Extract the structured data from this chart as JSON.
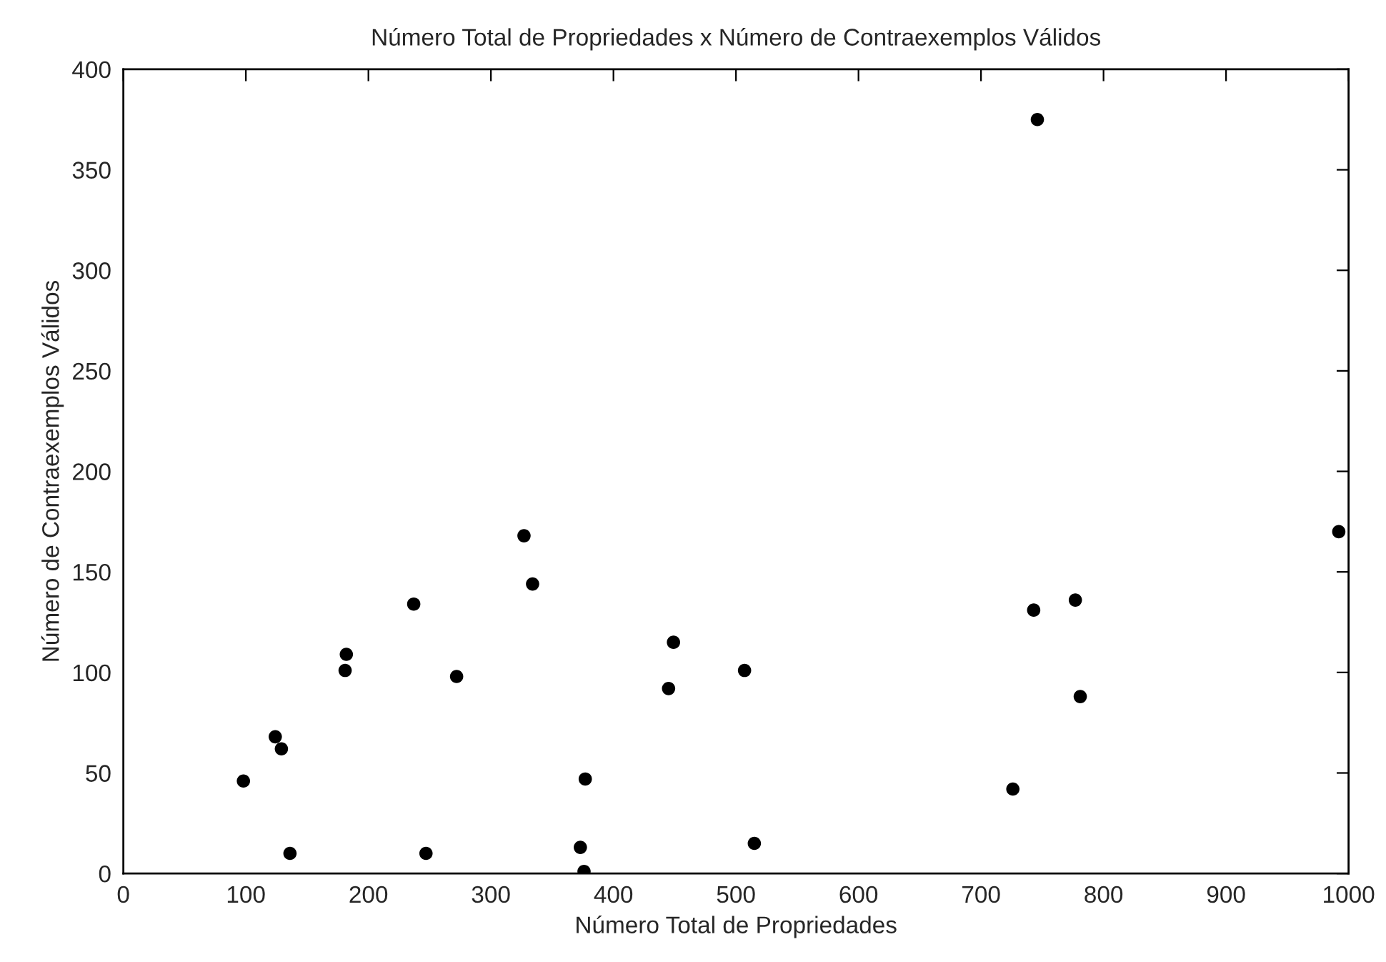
{
  "chart_data": {
    "type": "scatter",
    "title": "Número Total de Propriedades x Número de Contraexemplos Válidos",
    "xlabel": "Número Total de Propriedades",
    "ylabel": "Número de Contraexemplos Válidos",
    "x": [
      98,
      124,
      129,
      136,
      181,
      182,
      237,
      247,
      272,
      327,
      334,
      377,
      373,
      376,
      449,
      445,
      507,
      515,
      746,
      743,
      777,
      781,
      726,
      992
    ],
    "values": [
      46,
      68,
      62,
      10,
      101,
      109,
      134,
      10,
      98,
      168,
      144,
      47,
      13,
      1,
      115,
      92,
      101,
      15,
      375,
      131,
      136,
      88,
      42,
      170
    ],
    "color": "#000000",
    "marker": "circle",
    "xlim": [
      0,
      1000
    ],
    "xticks": [
      0,
      100,
      200,
      300,
      400,
      500,
      600,
      700,
      800,
      900,
      1000
    ],
    "ylim": [
      0,
      400
    ],
    "yticks": [
      0,
      50,
      100,
      150,
      200,
      250,
      300,
      350,
      400
    ],
    "grid": false
  }
}
